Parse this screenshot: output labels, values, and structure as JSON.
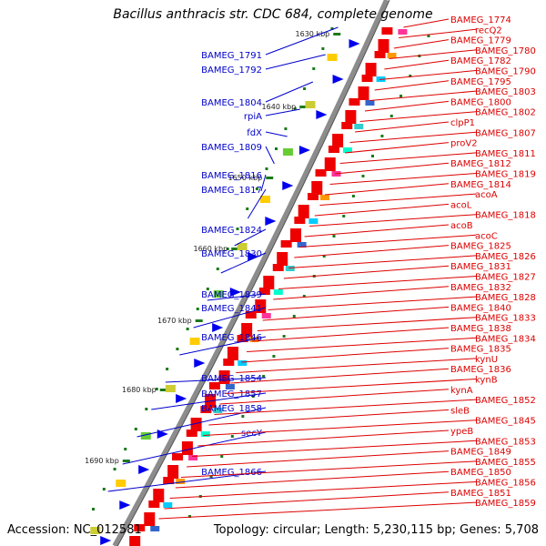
{
  "title": "Bacillus anthracis str. CDC 684, complete genome",
  "footer": {
    "accession": "Accession: NC_012581",
    "summary": "Topology: circular; Length: 5,230,115 bp; Genes: 5,708"
  },
  "colors": {
    "backbone": "#8c8c8c",
    "forward_label": "#0000cc",
    "reverse_label": "#dd0000",
    "forward_feature": "#0000ee",
    "reverse_feature": "#ee0000",
    "kbp_tick": "#1a7a1a"
  },
  "kbp_marks": [
    "1630 kbp",
    "1640 kbp",
    "1650 kbp",
    "1660 kbp",
    "1670 kbp",
    "1680 kbp",
    "1690 kbp"
  ],
  "left_genes": [
    "BAMEG_1791",
    "BAMEG_1792",
    "BAMEG_1804",
    "rpiA",
    "fdX",
    "BAMEG_1809",
    "BAMEG_1816",
    "BAMEG_1817",
    "BAMEG_1824",
    "BAMEG_1830",
    "BAMEG_1839",
    "BAMEG_1841",
    "BAMEG_1846",
    "BAMEG_1854",
    "BAMEG_1857",
    "BAMEG_1858",
    "secY",
    "BAMEG_1866"
  ],
  "right_genes": [
    "BAMEG_1774",
    "recQ2",
    "BAMEG_1779",
    "BAMEG_1780",
    "BAMEG_1782",
    "BAMEG_1790",
    "BAMEG_1795",
    "BAMEG_1803",
    "BAMEG_1800",
    "BAMEG_1802",
    "clpP1",
    "BAMEG_1807",
    "proV2",
    "BAMEG_1811",
    "BAMEG_1812",
    "BAMEG_1819",
    "BAMEG_1814",
    "acoA",
    "acoL",
    "BAMEG_1818",
    "acoB",
    "acoC",
    "BAMEG_1825",
    "BAMEG_1826",
    "BAMEG_1831",
    "BAMEG_1827",
    "BAMEG_1832",
    "BAMEG_1828",
    "BAMEG_1840",
    "BAMEG_1833",
    "BAMEG_1838",
    "BAMEG_1834",
    "BAMEG_1835",
    "kynU",
    "BAMEG_1836",
    "kynB",
    "kynA",
    "BAMEG_1852",
    "sleB",
    "BAMEG_1845",
    "ypeB",
    "BAMEG_1853",
    "BAMEG_1849",
    "BAMEG_1855",
    "BAMEG_1850",
    "BAMEG_1856",
    "BAMEG_1851",
    "BAMEG_1859"
  ]
}
